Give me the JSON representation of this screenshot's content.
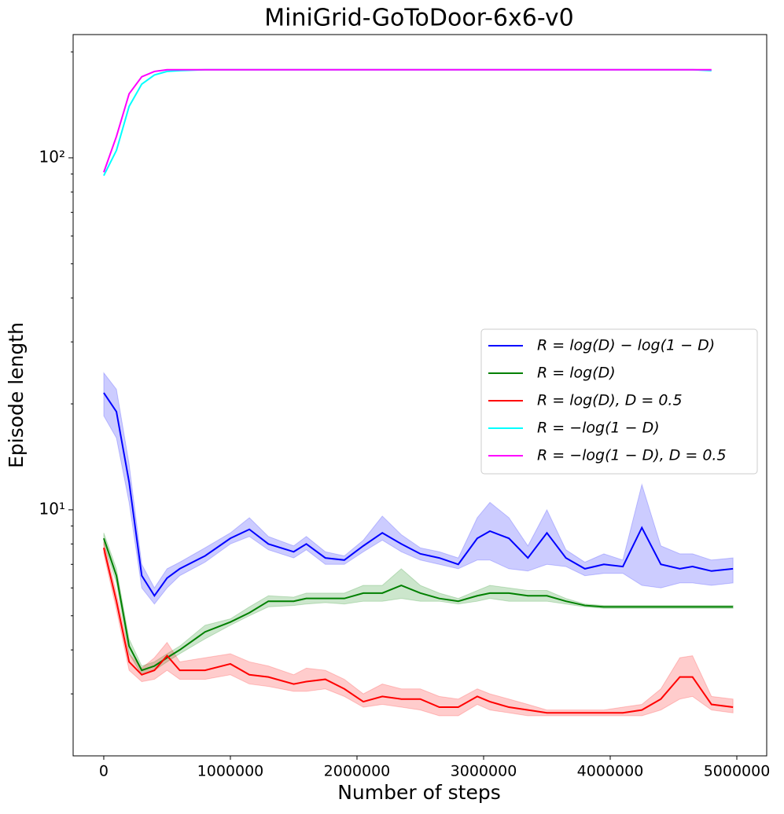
{
  "chart_data": {
    "type": "line",
    "title": "MiniGrid-GoToDoor-6x6-v0",
    "x_label": "Number of steps",
    "y_label": "Episode length",
    "x": [
      0,
      100000,
      200000,
      300000,
      400000,
      500000,
      600000,
      800000,
      1000000,
      1150000,
      1300000,
      1500000,
      1600000,
      1750000,
      1900000,
      2050000,
      2200000,
      2350000,
      2500000,
      2650000,
      2800000,
      2950000,
      3050000,
      3200000,
      3350000,
      3500000,
      3650000,
      3800000,
      3950000,
      4100000,
      4250000,
      4400000,
      4550000,
      4650000,
      4800000,
      4970000
    ],
    "xlim": [
      -242000,
      5236000
    ],
    "xticks": [
      0,
      1000000,
      2000000,
      3000000,
      4000000,
      5000000
    ],
    "ylim": [
      2,
      224
    ],
    "log_y": true,
    "yticks": [
      {
        "value": 10,
        "label": "10¹"
      },
      {
        "value": 100,
        "label": "10²"
      }
    ],
    "yminorticks": [
      3,
      4,
      5,
      6,
      7,
      8,
      9,
      20,
      30,
      40,
      50,
      60,
      70,
      80,
      90,
      200
    ],
    "legend": "center right",
    "series": [
      {
        "name": "R = log(D) − log(1 − D)",
        "color": "#0000ff",
        "values": [
          21.5,
          19,
          12,
          6.5,
          5.7,
          6.4,
          6.8,
          7.4,
          8.3,
          8.8,
          8.0,
          7.6,
          8.0,
          7.3,
          7.2,
          7.9,
          8.6,
          8.0,
          7.5,
          7.3,
          7.0,
          8.3,
          8.7,
          8.3,
          7.3,
          8.6,
          7.3,
          6.8,
          7.0,
          6.9,
          8.9,
          7.0,
          6.8,
          6.9,
          6.7,
          6.8
        ],
        "lower": [
          18.5,
          16,
          10.5,
          6,
          5.4,
          6,
          6.5,
          7.1,
          8.0,
          8.4,
          7.7,
          7.3,
          7.7,
          7.0,
          7.0,
          7.6,
          8.2,
          7.6,
          7.2,
          7.0,
          6.8,
          7.2,
          7.2,
          6.8,
          6.7,
          7.0,
          6.9,
          6.5,
          6.6,
          6.6,
          6.1,
          6.0,
          6.2,
          6.2,
          6.1,
          6.2
        ],
        "upper": [
          24.5,
          22,
          13.5,
          7,
          6.0,
          6.8,
          7.1,
          7.8,
          8.6,
          9.5,
          8.4,
          7.9,
          8.4,
          7.6,
          7.4,
          8.2,
          9.6,
          8.5,
          7.8,
          7.6,
          7.3,
          9.5,
          10.5,
          9.5,
          7.9,
          10.0,
          7.7,
          7.1,
          7.5,
          7.2,
          11.8,
          7.9,
          7.5,
          7.5,
          7.2,
          7.3
        ]
      },
      {
        "name": "R = log(D)",
        "color": "#008000",
        "values": [
          8.3,
          6.5,
          4.1,
          3.5,
          3.6,
          3.8,
          4.0,
          4.5,
          4.8,
          5.1,
          5.5,
          5.5,
          5.6,
          5.6,
          5.6,
          5.8,
          5.8,
          6.1,
          5.8,
          5.6,
          5.5,
          5.7,
          5.8,
          5.8,
          5.7,
          5.7,
          5.5,
          5.35,
          5.3,
          5.3,
          5.3,
          5.3,
          5.3,
          5.3,
          5.3,
          5.3
        ],
        "lower": [
          8.0,
          6.2,
          3.9,
          3.4,
          3.5,
          3.7,
          3.9,
          4.3,
          4.7,
          5.0,
          5.3,
          5.35,
          5.4,
          5.45,
          5.4,
          5.5,
          5.5,
          5.6,
          5.5,
          5.5,
          5.4,
          5.5,
          5.6,
          5.5,
          5.5,
          5.5,
          5.4,
          5.3,
          5.25,
          5.25,
          5.25,
          5.25,
          5.25,
          5.25,
          5.25,
          5.25
        ],
        "upper": [
          8.6,
          6.8,
          4.3,
          3.6,
          3.7,
          3.9,
          4.1,
          4.7,
          4.9,
          5.3,
          5.7,
          5.65,
          5.8,
          5.8,
          5.8,
          6.1,
          6.1,
          6.8,
          6.1,
          5.8,
          5.6,
          5.9,
          6.1,
          6.0,
          5.9,
          5.9,
          5.6,
          5.4,
          5.35,
          5.35,
          5.35,
          5.35,
          5.35,
          5.35,
          5.35,
          5.35
        ]
      },
      {
        "name": "R = log(D), D = 0.5",
        "color": "#ff0000",
        "values": [
          7.8,
          5.5,
          3.7,
          3.4,
          3.5,
          3.85,
          3.5,
          3.5,
          3.65,
          3.4,
          3.35,
          3.2,
          3.25,
          3.3,
          3.1,
          2.85,
          2.95,
          2.9,
          2.9,
          2.75,
          2.75,
          2.95,
          2.85,
          2.75,
          2.7,
          2.65,
          2.65,
          2.65,
          2.65,
          2.65,
          2.7,
          2.9,
          3.35,
          3.35,
          2.8,
          2.75
        ],
        "lower": [
          7.5,
          5.2,
          3.5,
          3.25,
          3.3,
          3.5,
          3.3,
          3.3,
          3.4,
          3.2,
          3.15,
          3.05,
          3.05,
          3.1,
          2.95,
          2.75,
          2.8,
          2.75,
          2.7,
          2.6,
          2.6,
          2.8,
          2.7,
          2.65,
          2.6,
          2.6,
          2.6,
          2.6,
          2.6,
          2.6,
          2.6,
          2.7,
          2.9,
          2.95,
          2.7,
          2.65
        ],
        "upper": [
          8.1,
          5.8,
          3.9,
          3.55,
          3.8,
          4.2,
          3.7,
          3.8,
          3.9,
          3.7,
          3.6,
          3.4,
          3.55,
          3.5,
          3.3,
          3.0,
          3.2,
          3.1,
          3.1,
          2.95,
          2.9,
          3.1,
          3.0,
          2.9,
          2.8,
          2.7,
          2.7,
          2.7,
          2.7,
          2.75,
          2.8,
          3.1,
          3.8,
          3.85,
          2.95,
          2.9
        ]
      },
      {
        "name": "R = −log(1 − D)",
        "color": "#00ffff",
        "values": [
          89,
          105,
          140,
          162,
          172,
          176,
          177,
          178,
          178,
          178,
          178,
          178,
          178,
          178,
          178,
          178,
          178,
          178,
          178,
          178,
          178,
          178,
          178,
          178,
          178,
          178,
          178,
          178,
          178,
          178,
          178,
          178,
          178,
          178,
          177,
          null
        ]
      },
      {
        "name": "R = −log(1 − D), D = 0.5",
        "color": "#ff00ff",
        "values": [
          91,
          115,
          152,
          170,
          176,
          178,
          178,
          178,
          178,
          178,
          178,
          178,
          178,
          178,
          178,
          178,
          178,
          178,
          178,
          178,
          178,
          178,
          178,
          178,
          178,
          178,
          178,
          178,
          178,
          178,
          178,
          178,
          178,
          178,
          178,
          null
        ]
      }
    ]
  }
}
